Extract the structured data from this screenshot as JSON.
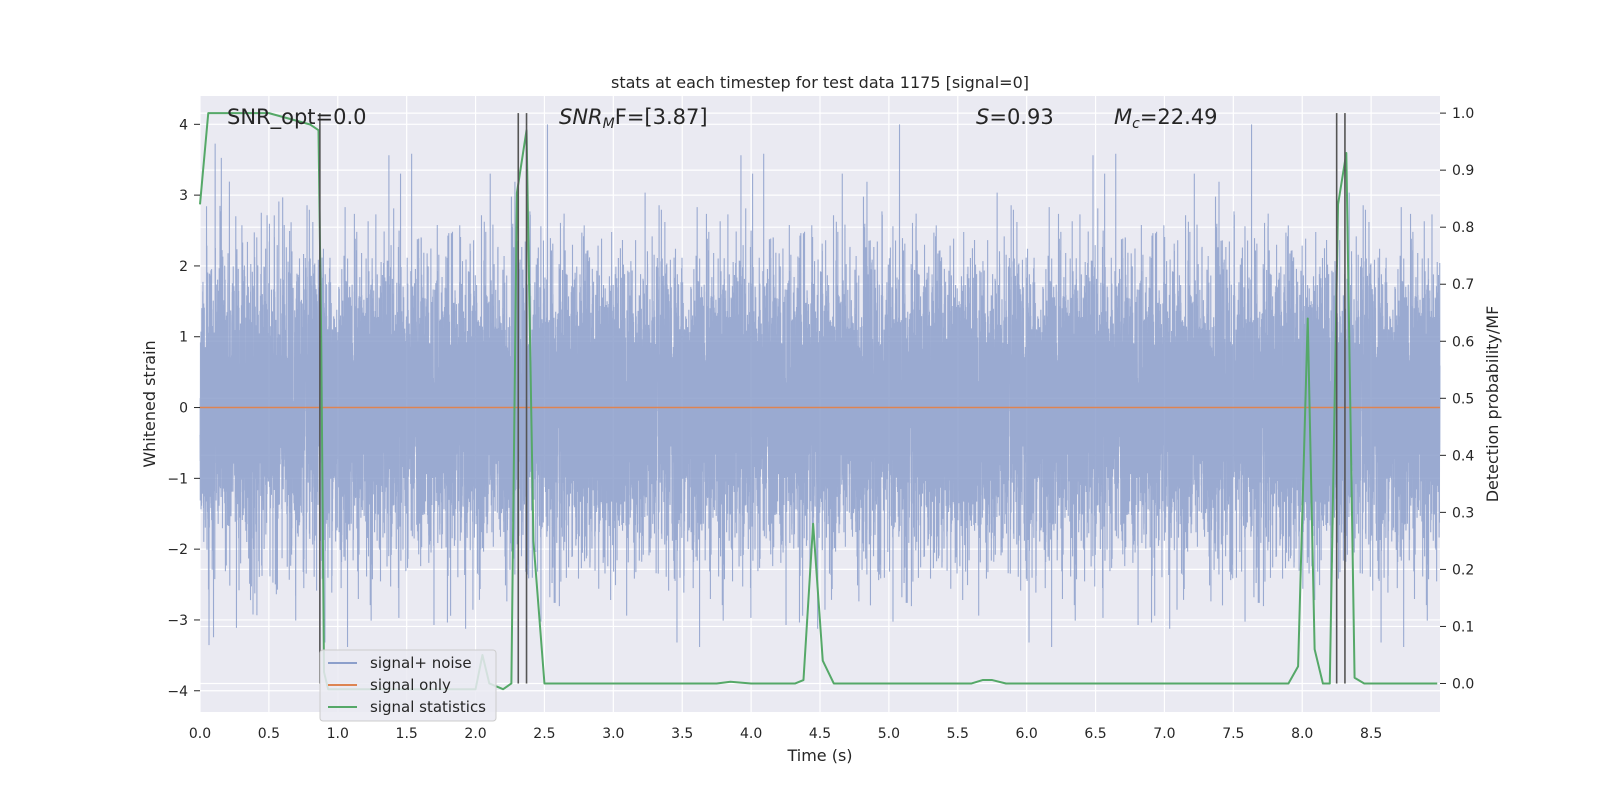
{
  "chart_data": {
    "type": "line",
    "title": "stats at each timestep for test data 1175 [signal=0]",
    "xlabel": "Time (s)",
    "ylabel_left": "Whitened strain",
    "ylabel_right": "Detection probability/MF",
    "xlim": [
      0.0,
      9.0
    ],
    "ylim_left": [
      -4.3,
      4.4
    ],
    "ylim_right": [
      -0.05,
      1.03
    ],
    "x_ticks": [
      "0.0",
      "0.5",
      "1.0",
      "1.5",
      "2.0",
      "2.5",
      "3.0",
      "3.5",
      "4.0",
      "4.5",
      "5.0",
      "5.5",
      "6.0",
      "6.5",
      "7.0",
      "7.5",
      "8.0",
      "8.5"
    ],
    "y_ticks_left": [
      "4",
      "3",
      "2",
      "1",
      "0",
      "−1",
      "−2",
      "−3",
      "−4"
    ],
    "y_ticks_right": [
      "1.0",
      "0.9",
      "0.8",
      "0.7",
      "0.6",
      "0.5",
      "0.4",
      "0.3",
      "0.2",
      "0.1",
      "0.0"
    ],
    "grid": true,
    "legend_position": "lower-left",
    "annotations": {
      "snr_opt": "SNR_opt=0.0",
      "snr_mf_main": "SNR",
      "snr_mf_sub": "M",
      "snr_mf_rest": "F=[3.87]",
      "s_main": "S",
      "s_rest": "=0.93",
      "mc_main": "M",
      "mc_sub": "c",
      "mc_rest": "=22.49"
    },
    "vertical_markers": [
      0.87,
      2.31,
      2.37,
      8.25,
      8.31
    ],
    "series": [
      {
        "name": "signal+ noise",
        "color": "#8c9fcb",
        "axis": "left",
        "sample_rate_hz": 2048,
        "noise_std": 1.0,
        "ranges": [
          -4,
          4
        ]
      },
      {
        "name": "signal only",
        "color": "#dd8452",
        "axis": "left",
        "x": [
          0.0,
          9.0
        ],
        "y": [
          0.0,
          0.0
        ]
      },
      {
        "name": "signal statistics",
        "color": "#55a868",
        "axis": "right",
        "x": [
          0.0,
          0.06,
          0.12,
          0.25,
          0.5,
          0.8,
          0.86,
          0.88,
          0.9,
          0.93,
          1.0,
          1.5,
          2.0,
          2.05,
          2.1,
          2.2,
          2.26,
          2.3,
          2.37,
          2.42,
          2.5,
          2.6,
          3.0,
          3.5,
          3.75,
          3.85,
          4.0,
          4.32,
          4.38,
          4.45,
          4.52,
          4.6,
          5.0,
          5.6,
          5.68,
          5.75,
          5.85,
          6.5,
          7.0,
          7.5,
          7.9,
          7.97,
          8.04,
          8.09,
          8.15,
          8.2,
          8.26,
          8.32,
          8.38,
          8.45,
          8.6,
          8.98
        ],
        "y": [
          0.84,
          1.0,
          1.0,
          1.0,
          1.0,
          0.98,
          0.97,
          0.6,
          0.02,
          -0.01,
          -0.01,
          -0.01,
          -0.01,
          0.05,
          0.0,
          -0.01,
          0.0,
          0.86,
          0.97,
          0.25,
          0.0,
          0.0,
          0.0,
          0.0,
          0.0,
          0.003,
          0.0,
          0.0,
          0.006,
          0.28,
          0.04,
          0.0,
          0.0,
          0.0,
          0.006,
          0.006,
          0.0,
          0.0,
          0.0,
          0.0,
          0.0,
          0.03,
          0.64,
          0.06,
          0.0,
          0.0,
          0.84,
          0.93,
          0.01,
          0.0,
          0.0,
          0.0
        ]
      }
    ]
  }
}
